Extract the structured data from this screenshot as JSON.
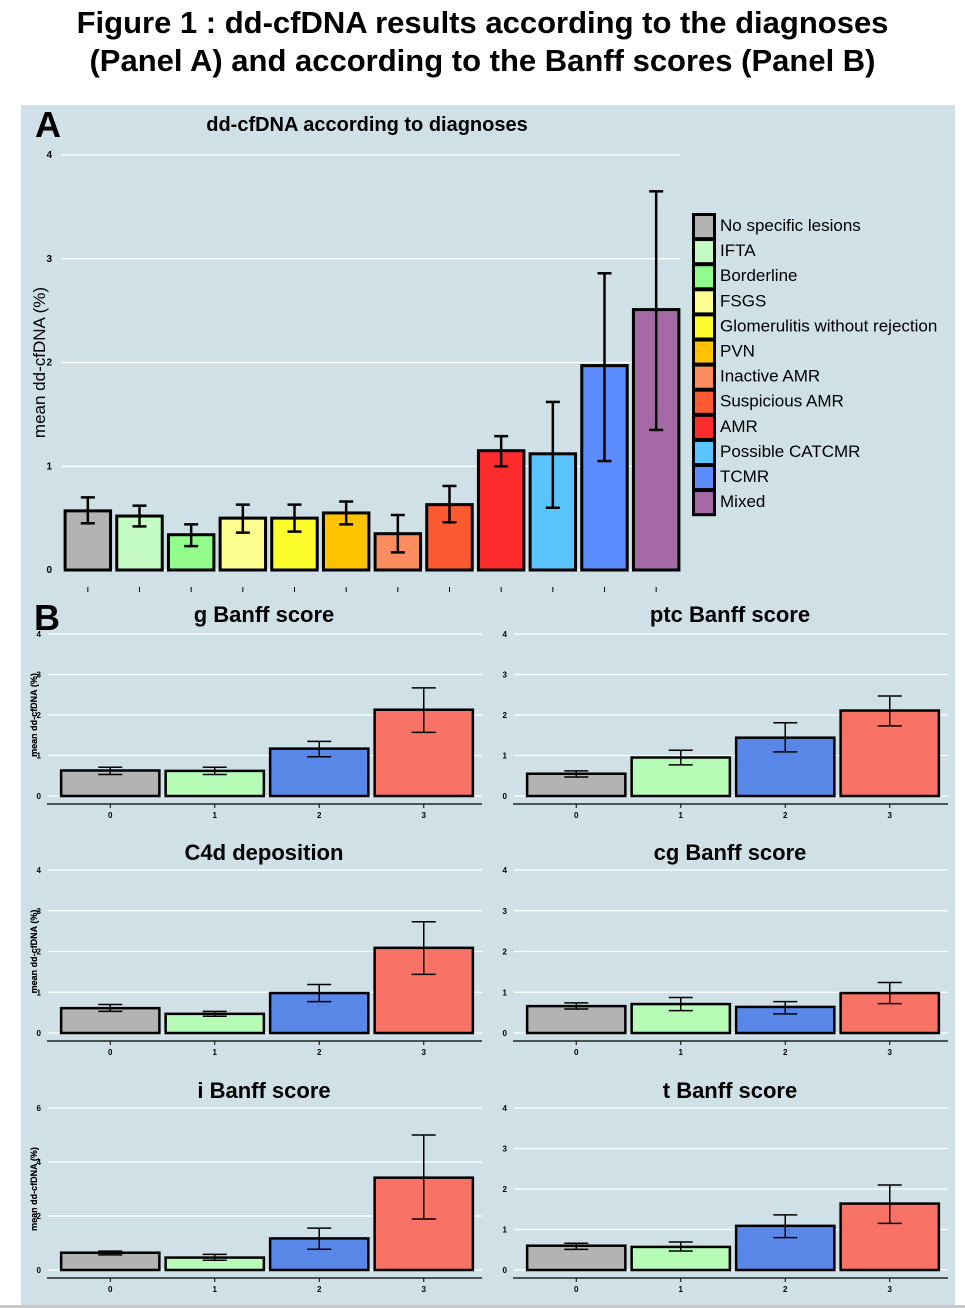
{
  "figure": {
    "title_line1": "Figure 1 : dd-cfDNA results according to the diagnoses",
    "title_line2": "(Panel A) and according to the Banff scores (Panel B)",
    "panel_a_letter": "A",
    "panel_b_letter": "B",
    "background_color": "#cfe0e7"
  },
  "chart_data": [
    {
      "id": "panelA",
      "type": "bar",
      "title": "dd-cfDNA according to diagnoses",
      "xlabel": "",
      "ylabel": "mean dd-cfDNA (%)",
      "ylim": [
        0,
        4
      ],
      "yticks": [
        "0",
        "1",
        "2",
        "3",
        "4"
      ],
      "grid": true,
      "legend_position": "right",
      "categories": [
        "No specific lesions",
        "IFTA",
        "Borderline",
        "FSGS",
        "Glomerulitis without rejection",
        "PVN",
        "Inactive AMR",
        "Suspicious AMR",
        "AMR",
        "Possible CATCMR",
        "TCMR",
        "Mixed"
      ],
      "values": [
        0.57,
        0.52,
        0.34,
        0.5,
        0.5,
        0.55,
        0.35,
        0.63,
        1.15,
        1.12,
        1.97,
        2.51
      ],
      "err_low": [
        0.45,
        0.42,
        0.23,
        0.36,
        0.37,
        0.44,
        0.17,
        0.46,
        1.0,
        0.6,
        1.05,
        1.35
      ],
      "err_high": [
        0.7,
        0.62,
        0.44,
        0.63,
        0.63,
        0.66,
        0.53,
        0.81,
        1.29,
        1.62,
        2.86,
        3.65
      ],
      "colors": [
        "#b3b3b3",
        "#c4fcc4",
        "#91fc8c",
        "#fdfc8e",
        "#fdfc2c",
        "#fdc300",
        "#fd8c5e",
        "#fd5a31",
        "#fd2c2c",
        "#5cc4fd",
        "#5a8cfd",
        "#a56aa6"
      ]
    },
    {
      "id": "g",
      "type": "bar",
      "title": "g Banff score",
      "xlabel": "",
      "ylabel": "mean dd-cfDNA (%)",
      "ylim": [
        0,
        4
      ],
      "yticks": [
        "0",
        "1",
        "2",
        "3",
        "4"
      ],
      "grid": true,
      "categories": [
        "0",
        "1",
        "2",
        "3"
      ],
      "values": [
        0.63,
        0.62,
        1.17,
        2.13
      ],
      "err_low": [
        0.53,
        0.53,
        0.97,
        1.57
      ],
      "err_high": [
        0.71,
        0.71,
        1.35,
        2.67
      ]
    },
    {
      "id": "ptc",
      "type": "bar",
      "title": "ptc Banff score",
      "xlabel": "",
      "ylabel": "mean dd-cfDNA (%)",
      "ylim": [
        0,
        4
      ],
      "yticks": [
        "0",
        "1",
        "2",
        "3",
        "4"
      ],
      "grid": true,
      "categories": [
        "0",
        "1",
        "2",
        "3"
      ],
      "values": [
        0.55,
        0.95,
        1.44,
        2.11
      ],
      "err_low": [
        0.47,
        0.77,
        1.09,
        1.73
      ],
      "err_high": [
        0.62,
        1.13,
        1.81,
        2.47
      ]
    },
    {
      "id": "c4d",
      "type": "bar",
      "title": "C4d deposition",
      "xlabel": "",
      "ylabel": "mean dd-cfDNA (%)",
      "ylim": [
        0,
        4
      ],
      "yticks": [
        "0",
        "1",
        "2",
        "3",
        "4"
      ],
      "grid": true,
      "categories": [
        "0",
        "1",
        "2",
        "3"
      ],
      "values": [
        0.61,
        0.47,
        0.98,
        2.09
      ],
      "err_low": [
        0.53,
        0.41,
        0.77,
        1.44
      ],
      "err_high": [
        0.7,
        0.53,
        1.19,
        2.73
      ]
    },
    {
      "id": "cg",
      "type": "bar",
      "title": "cg Banff score",
      "xlabel": "",
      "ylabel": "mean dd-cfDNA (%)",
      "ylim": [
        0,
        4
      ],
      "yticks": [
        "0",
        "1",
        "2",
        "3",
        "4"
      ],
      "grid": true,
      "categories": [
        "0",
        "1",
        "2",
        "3"
      ],
      "values": [
        0.66,
        0.71,
        0.64,
        0.98
      ],
      "err_low": [
        0.59,
        0.55,
        0.47,
        0.72
      ],
      "err_high": [
        0.74,
        0.87,
        0.77,
        1.24
      ]
    },
    {
      "id": "i",
      "type": "bar",
      "title": "i Banff score",
      "xlabel": "",
      "ylabel": "mean dd-cfDNA (%)",
      "ylim": [
        0,
        6
      ],
      "yticks": [
        "0",
        "2",
        "4",
        "6"
      ],
      "grid": true,
      "categories": [
        "0",
        "1",
        "2",
        "3"
      ],
      "values": [
        0.64,
        0.46,
        1.17,
        3.42
      ],
      "err_low": [
        0.56,
        0.36,
        0.77,
        1.89
      ],
      "err_high": [
        0.7,
        0.58,
        1.55,
        5.0
      ]
    },
    {
      "id": "t",
      "type": "bar",
      "title": "t Banff score",
      "xlabel": "",
      "ylabel": "mean dd-cfDNA (%)",
      "ylim": [
        0,
        4
      ],
      "yticks": [
        "0",
        "1",
        "2",
        "3",
        "4"
      ],
      "grid": true,
      "categories": [
        "0",
        "1",
        "2",
        "3"
      ],
      "values": [
        0.6,
        0.57,
        1.09,
        1.64
      ],
      "err_low": [
        0.51,
        0.47,
        0.8,
        1.15
      ],
      "err_high": [
        0.66,
        0.69,
        1.36,
        2.1
      ]
    }
  ],
  "banff_colors": [
    "#b3b3b3",
    "#b6fcb6",
    "#5887e8",
    "#f87266"
  ]
}
